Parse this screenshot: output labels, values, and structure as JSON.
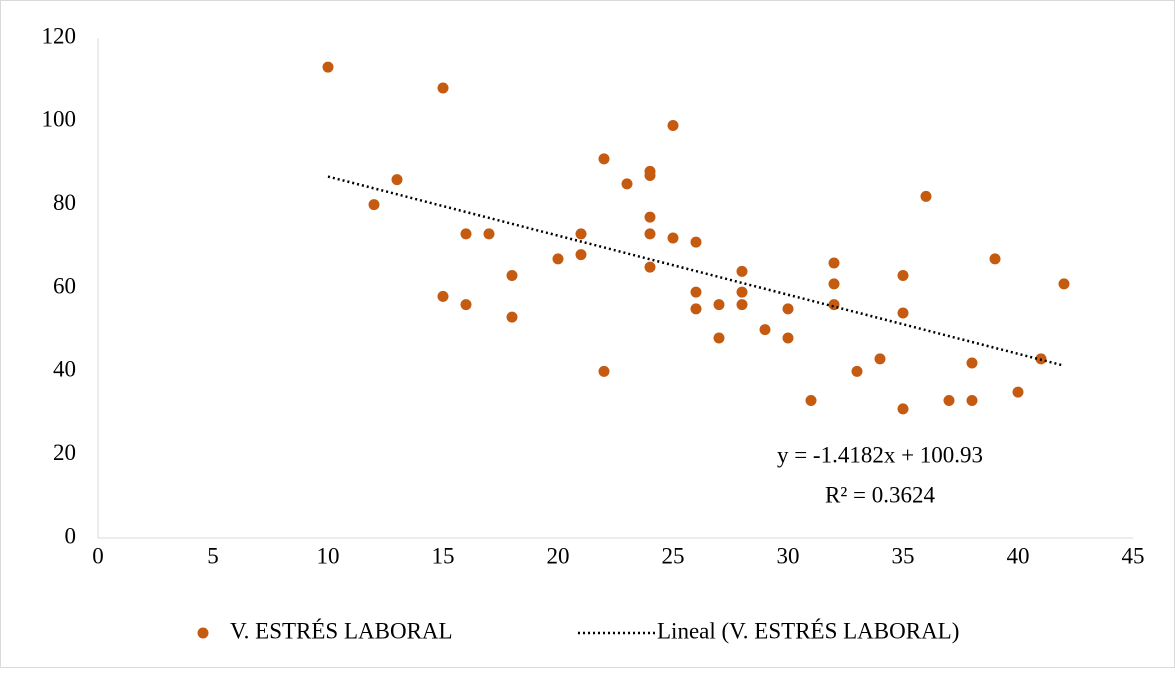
{
  "chart_data": {
    "type": "scatter",
    "series": [
      {
        "name": "V. ESTRÉS LABORAL",
        "color": "#c55a11",
        "x": [
          10,
          12,
          13,
          15,
          15,
          16,
          16,
          17,
          18,
          18,
          20,
          21,
          21,
          22,
          22,
          23,
          24,
          24,
          24,
          24,
          24,
          25,
          25,
          26,
          26,
          26,
          27,
          27,
          28,
          28,
          28,
          29,
          30,
          30,
          31,
          32,
          32,
          32,
          33,
          34,
          35,
          35,
          35,
          36,
          37,
          38,
          38,
          39,
          40,
          41,
          42
        ],
        "values": [
          113,
          80,
          86,
          108,
          58,
          73,
          56,
          73,
          63,
          53,
          67,
          73,
          68,
          91,
          40,
          85,
          88,
          87,
          77,
          73,
          65,
          99,
          72,
          71,
          59,
          55,
          56,
          48,
          64,
          59,
          56,
          50,
          55,
          48,
          33,
          66,
          61,
          56,
          40,
          43,
          63,
          54,
          31,
          82,
          33,
          42,
          33,
          67,
          35,
          43,
          61
        ]
      },
      {
        "name": "Lineal (V. ESTRÉS LABORAL)",
        "type": "trendline",
        "color": "#000000",
        "x": [
          10,
          42
        ],
        "values": [
          86.75,
          41.37
        ]
      }
    ],
    "annotations": [
      "y = -1.4182x + 100.93",
      "R² = 0.3624"
    ],
    "xlim": [
      0,
      45
    ],
    "xticks": [
      0,
      5,
      10,
      15,
      20,
      25,
      30,
      35,
      40,
      45
    ],
    "ylim": [
      0,
      120
    ],
    "yticks": [
      0,
      20,
      40,
      60,
      80,
      100,
      120
    ],
    "grid": false,
    "legend": "bottom"
  }
}
